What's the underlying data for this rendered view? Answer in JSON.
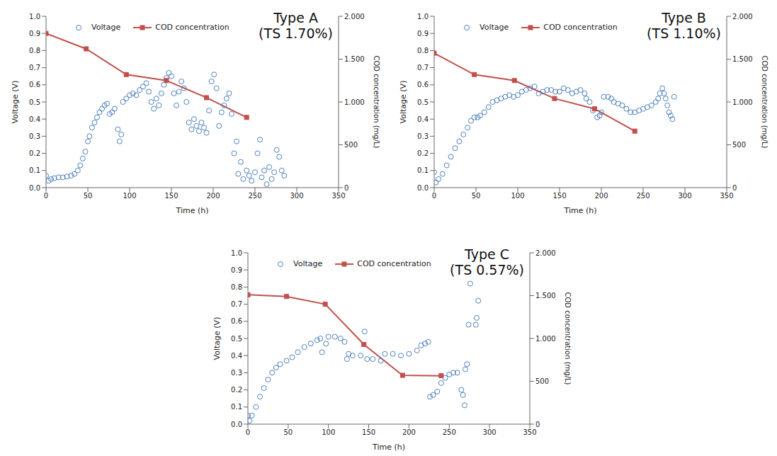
{
  "chart_data": [
    {
      "type": "scatter",
      "title": "Type A",
      "subtitle": "(TS 1.70%)",
      "xlabel": "Time (h)",
      "ylabel": "Voltage (V)",
      "y2label": "COD concentration (mg/L)",
      "xlim": [
        0,
        350
      ],
      "xticks": [
        0,
        50,
        100,
        150,
        200,
        250,
        300,
        350
      ],
      "ylim": [
        0,
        1
      ],
      "yticks": [
        {
          "value": 0,
          "label": "0.0"
        },
        0.1,
        0.2,
        0.3,
        0.4,
        0.5,
        0.6,
        0.7,
        0.8,
        0.9,
        {
          "value": 1,
          "label": "1.0"
        }
      ],
      "y2lim": [
        0,
        2000
      ],
      "y2ticks": [
        0,
        500,
        {
          "value": 1000,
          "label": "1.000"
        },
        {
          "value": 1500,
          "label": "1.500"
        },
        {
          "value": 2000,
          "label": "2.000"
        }
      ],
      "grid": false,
      "legend": "upper left",
      "series": [
        {
          "name": "Voltage",
          "type": "scatter",
          "marker": "circle",
          "color": "#4f81bd",
          "x": [
            0,
            3,
            6,
            10,
            15,
            20,
            25,
            30,
            34,
            38,
            41,
            44,
            47,
            50,
            52,
            55,
            58,
            61,
            64,
            67,
            70,
            73,
            76,
            79,
            82,
            86,
            88,
            90,
            92,
            96,
            100,
            104,
            108,
            112,
            116,
            120,
            123,
            126,
            129,
            132,
            135,
            138,
            141,
            144,
            147,
            150,
            153,
            156,
            159,
            162,
            165,
            168,
            171,
            174,
            177,
            180,
            183,
            186,
            189,
            192,
            195,
            198,
            201,
            204,
            207,
            210,
            213,
            216,
            219,
            222,
            225,
            228,
            230,
            233,
            236,
            240,
            243,
            246,
            250,
            253,
            256,
            258,
            261,
            264,
            267,
            270,
            273,
            276,
            279,
            282,
            285
          ],
          "values": [
            0.07,
            0.04,
            0.05,
            0.055,
            0.06,
            0.06,
            0.065,
            0.07,
            0.08,
            0.1,
            0.13,
            0.17,
            0.21,
            0.27,
            0.3,
            0.35,
            0.38,
            0.41,
            0.44,
            0.46,
            0.48,
            0.49,
            0.43,
            0.44,
            0.46,
            0.34,
            0.27,
            0.31,
            0.5,
            0.52,
            0.54,
            0.55,
            0.54,
            0.57,
            0.59,
            0.61,
            0.56,
            0.5,
            0.46,
            0.52,
            0.48,
            0.55,
            0.6,
            0.64,
            0.67,
            0.65,
            0.55,
            0.48,
            0.56,
            0.62,
            0.58,
            0.5,
            0.38,
            0.34,
            0.4,
            0.36,
            0.33,
            0.38,
            0.35,
            0.32,
            0.45,
            0.62,
            0.66,
            0.58,
            0.36,
            0.44,
            0.48,
            0.52,
            0.55,
            0.43,
            0.2,
            0.27,
            0.08,
            0.15,
            0.05,
            0.1,
            0.07,
            0.04,
            0.09,
            0.2,
            0.28,
            0.06,
            0.1,
            0.02,
            0.12,
            0.05,
            0.09,
            0.22,
            0.18,
            0.1,
            0.07
          ]
        },
        {
          "name": "COD concentration",
          "type": "line",
          "marker": "square",
          "line_style": "solid",
          "color": "#c0504d",
          "axis": "y2",
          "x": [
            0,
            48,
            96,
            144,
            192,
            240
          ],
          "values": [
            1800,
            1620,
            1320,
            1250,
            1050,
            820
          ]
        }
      ]
    },
    {
      "type": "scatter",
      "title": "Type B",
      "subtitle": "(TS 1.10%)",
      "xlabel": "Time (h)",
      "ylabel": "Voltage (V)",
      "y2label": "COD concentration (mg/L)",
      "xlim": [
        0,
        350
      ],
      "xticks": [
        0,
        50,
        100,
        150,
        200,
        250,
        300,
        350
      ],
      "ylim": [
        0,
        1
      ],
      "yticks": [
        {
          "value": 0,
          "label": "0.0"
        },
        0.1,
        0.2,
        0.3,
        0.4,
        0.5,
        0.6,
        0.7,
        0.8,
        0.9,
        {
          "value": 1,
          "label": "1.0"
        }
      ],
      "y2lim": [
        0,
        2000
      ],
      "y2ticks": [
        0,
        500,
        {
          "value": 1000,
          "label": "1.000"
        },
        {
          "value": 1500,
          "label": "1.500"
        },
        {
          "value": 2000,
          "label": "2.000"
        }
      ],
      "grid": false,
      "legend": "upper left",
      "series": [
        {
          "name": "Voltage",
          "type": "scatter",
          "marker": "circle",
          "color": "#4f81bd",
          "x": [
            0,
            2,
            5,
            10,
            15,
            20,
            25,
            30,
            35,
            40,
            44,
            48,
            52,
            55,
            60,
            65,
            70,
            75,
            80,
            85,
            90,
            95,
            100,
            105,
            110,
            115,
            120,
            125,
            130,
            135,
            140,
            145,
            150,
            155,
            160,
            165,
            170,
            175,
            180,
            182,
            186,
            190,
            195,
            198,
            200,
            203,
            208,
            212,
            215,
            220,
            225,
            230,
            235,
            240,
            245,
            250,
            255,
            260,
            265,
            268,
            270,
            273,
            275,
            277,
            279,
            281,
            283,
            285,
            287
          ],
          "values": [
            0.09,
            0.03,
            0.05,
            0.08,
            0.13,
            0.18,
            0.23,
            0.27,
            0.31,
            0.35,
            0.39,
            0.41,
            0.41,
            0.42,
            0.44,
            0.47,
            0.5,
            0.51,
            0.52,
            0.53,
            0.54,
            0.53,
            0.54,
            0.56,
            0.57,
            0.58,
            0.59,
            0.55,
            0.56,
            0.57,
            0.57,
            0.56,
            0.56,
            0.58,
            0.57,
            0.55,
            0.56,
            0.57,
            0.55,
            0.52,
            0.5,
            0.45,
            0.41,
            0.42,
            0.44,
            0.53,
            0.53,
            0.52,
            0.5,
            0.49,
            0.48,
            0.46,
            0.44,
            0.44,
            0.45,
            0.46,
            0.47,
            0.48,
            0.5,
            0.52,
            0.55,
            0.58,
            0.55,
            0.52,
            0.48,
            0.44,
            0.42,
            0.4,
            0.53
          ]
        },
        {
          "name": "COD concentration",
          "type": "line",
          "marker": "square",
          "line_style": "solid",
          "color": "#c0504d",
          "axis": "y2",
          "x": [
            0,
            48,
            96,
            144,
            192,
            240
          ],
          "values": [
            1570,
            1320,
            1250,
            1040,
            920,
            660
          ]
        }
      ]
    },
    {
      "type": "scatter",
      "title": "Type C",
      "subtitle": "(TS 0.57%)",
      "xlabel": "Time (h)",
      "ylabel": "Voltage (V)",
      "y2label": "COD concentration (mg/L)",
      "xlim": [
        0,
        350
      ],
      "xticks": [
        0,
        50,
        100,
        150,
        200,
        250,
        300,
        350
      ],
      "ylim": [
        0,
        1
      ],
      "yticks": [
        {
          "value": 0,
          "label": "0.0"
        },
        0.1,
        0.2,
        0.3,
        0.4,
        0.5,
        0.6,
        0.7,
        0.8,
        0.9,
        {
          "value": 1,
          "label": "1.0"
        }
      ],
      "y2lim": [
        0,
        2000
      ],
      "y2ticks": [
        0,
        500,
        {
          "value": 1000,
          "label": "1.000"
        },
        {
          "value": 1500,
          "label": "1.500"
        },
        {
          "value": 2000,
          "label": "2.000"
        }
      ],
      "grid": false,
      "legend": "upper left",
      "series": [
        {
          "name": "Voltage",
          "type": "scatter",
          "marker": "circle",
          "color": "#4f81bd",
          "x": [
            0,
            2,
            5,
            10,
            15,
            20,
            25,
            30,
            35,
            40,
            48,
            55,
            62,
            70,
            78,
            86,
            90,
            92,
            97,
            100,
            108,
            115,
            120,
            123,
            125,
            130,
            140,
            145,
            148,
            155,
            165,
            170,
            180,
            190,
            200,
            210,
            215,
            220,
            224,
            226,
            230,
            235,
            240,
            245,
            250,
            255,
            260,
            265,
            267,
            269,
            270,
            272,
            274,
            276,
            283,
            284,
            286
          ],
          "values": [
            0.05,
            0.02,
            0.05,
            0.1,
            0.16,
            0.21,
            0.26,
            0.3,
            0.33,
            0.35,
            0.37,
            0.39,
            0.42,
            0.45,
            0.47,
            0.49,
            0.5,
            0.42,
            0.47,
            0.51,
            0.51,
            0.5,
            0.48,
            0.38,
            0.41,
            0.4,
            0.4,
            0.54,
            0.38,
            0.38,
            0.37,
            0.41,
            0.41,
            0.4,
            0.41,
            0.43,
            0.46,
            0.47,
            0.48,
            0.16,
            0.17,
            0.19,
            0.24,
            0.27,
            0.29,
            0.3,
            0.3,
            0.2,
            0.17,
            0.11,
            0.32,
            0.35,
            0.58,
            0.82,
            0.58,
            0.62,
            0.72
          ]
        },
        {
          "name": "COD concentration",
          "type": "line",
          "marker": "square",
          "line_style": "solid",
          "color": "#c0504d",
          "axis": "y2",
          "x": [
            0,
            48,
            96,
            144,
            192,
            240
          ],
          "values": [
            1510,
            1490,
            1400,
            930,
            570,
            565
          ]
        }
      ]
    }
  ]
}
